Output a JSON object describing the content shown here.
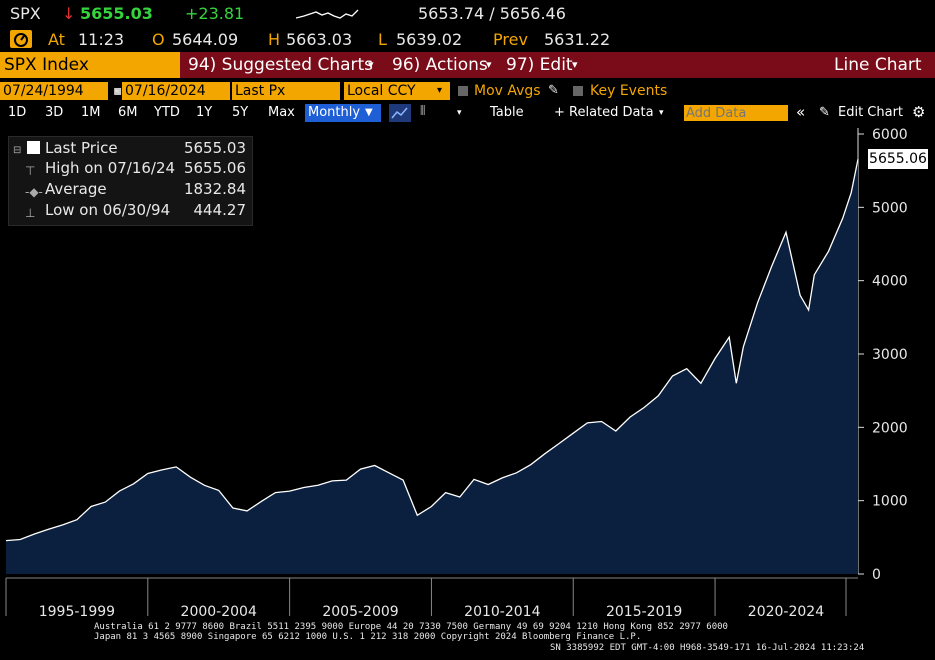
{
  "header": {
    "ticker": "SPX",
    "last_price": "5655.03",
    "change": "+23.81",
    "bid_ask": "5653.74 / 5656.46",
    "time_label": "At",
    "time": "11:23",
    "open_label": "O",
    "open": "5644.09",
    "high_label": "H",
    "high": "5663.03",
    "low_label": "L",
    "low": "5639.02",
    "prev_label": "Prev",
    "prev": "5631.22"
  },
  "menu": {
    "index_label": "SPX Index",
    "suggested": "94) Suggested Charts",
    "actions": "96) Actions",
    "edit": "97) Edit",
    "chart_type": "Line Chart"
  },
  "controls": {
    "start_date": "07/24/1994",
    "end_date": "07/16/2024",
    "field": "Last Px",
    "currency": "Local CCY",
    "mov_avgs": "Mov Avgs",
    "key_events": "Key Events"
  },
  "toolbar": {
    "periods": [
      "1D",
      "3D",
      "1M",
      "6M",
      "YTD",
      "1Y",
      "5Y",
      "Max"
    ],
    "frequency": "Monthly",
    "table": "Table",
    "related": "+ Related Data",
    "add_data_placeholder": "Add Data",
    "edit_chart": "Edit Chart"
  },
  "legend": {
    "last_price_label": "Last Price",
    "last_price": "5655.03",
    "high_label": "High on 07/16/24",
    "high": "5655.06",
    "avg_label": "Average",
    "avg": "1832.84",
    "low_label": "Low on 06/30/94",
    "low": "444.27"
  },
  "price_tag": "5655.06",
  "chart_data": {
    "type": "area",
    "title": "",
    "xlabel": "",
    "ylabel": "",
    "ylim": [
      0,
      6000
    ],
    "y_ticks": [
      "6000",
      "5000",
      "4000",
      "3000",
      "2000",
      "1000",
      "0"
    ],
    "x_labels": [
      "1995-1999",
      "2000-2004",
      "2005-2009",
      "2010-2014",
      "2015-2019",
      "2020-2024"
    ],
    "series": [
      {
        "x": [
          1994.5,
          1995,
          1995.5,
          1996,
          1996.5,
          1997,
          1997.5,
          1998,
          1998.5,
          1999,
          1999.5,
          2000,
          2000.5,
          2001,
          2001.5,
          2002,
          2002.5,
          2003,
          2003.5,
          2004,
          2004.5,
          2005,
          2005.5,
          2006,
          2006.5,
          2007,
          2007.5,
          2008,
          2008.5,
          2009,
          2009.5,
          2010,
          2010.5,
          2011,
          2011.5,
          2012,
          2012.5,
          2013,
          2013.5,
          2014,
          2014.5,
          2015,
          2015.5,
          2016,
          2016.5,
          2017,
          2017.5,
          2018,
          2018.5,
          2019,
          2019.5,
          2020,
          2020.25,
          2020.5,
          2021,
          2021.5,
          2022,
          2022.5,
          2022.8,
          2023,
          2023.5,
          2024,
          2024.3,
          2024.54
        ],
        "values": [
          455,
          470,
          545,
          610,
          670,
          740,
          920,
          980,
          1130,
          1230,
          1370,
          1420,
          1460,
          1320,
          1210,
          1140,
          900,
          860,
          990,
          1110,
          1130,
          1180,
          1210,
          1270,
          1280,
          1430,
          1480,
          1380,
          1280,
          800,
          920,
          1110,
          1050,
          1290,
          1220,
          1310,
          1380,
          1490,
          1640,
          1780,
          1920,
          2060,
          2080,
          1950,
          2140,
          2270,
          2430,
          2700,
          2800,
          2600,
          2940,
          3230,
          2600,
          3100,
          3700,
          4200,
          4660,
          3800,
          3600,
          4080,
          4400,
          4850,
          5200,
          5655
        ]
      }
    ]
  },
  "footer": {
    "line1": "Australia 61 2 9777 8600 Brazil 5511 2395 9000 Europe 44 20 7330 7500 Germany 49 69 9204 1210 Hong Kong 852 2977 6000",
    "line2": "Japan 81 3 4565 8900        Singapore 65 6212 1000       U.S. 1 212 318 2000         Copyright 2024 Bloomberg Finance L.P.",
    "line3": "SN 3385992 EDT  GMT-4:00 H968-3549-171 16-Jul-2024 11:23:24"
  }
}
